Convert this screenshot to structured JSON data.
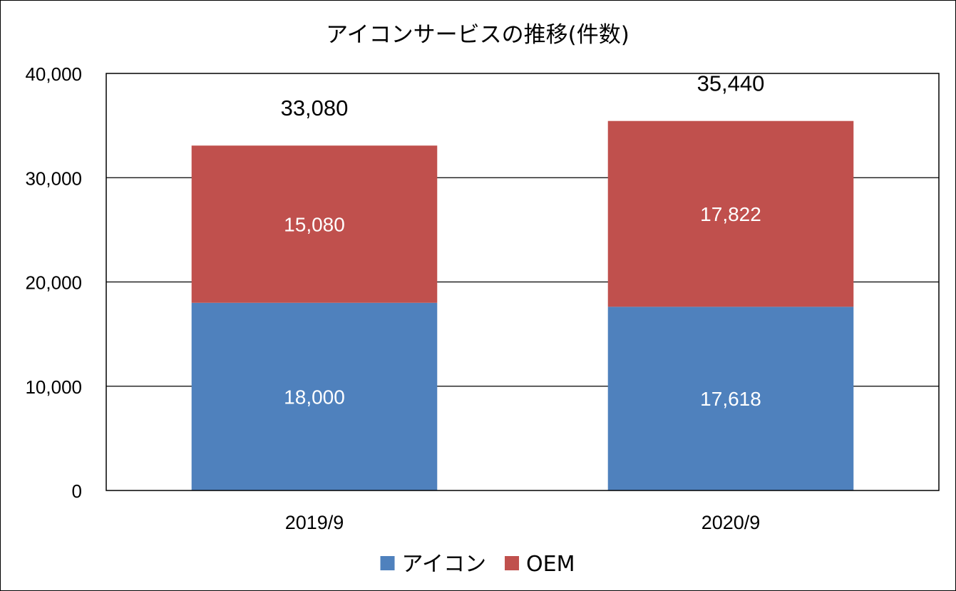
{
  "chart_data": {
    "type": "bar",
    "stacked": true,
    "title": "アイコンサービスの推移(件数)",
    "categories": [
      "2019/9",
      "2020/9"
    ],
    "series": [
      {
        "name": "アイコン",
        "values": [
          18000,
          17618
        ],
        "labels": [
          "18,000",
          "17,618"
        ],
        "color": "#4f81bd"
      },
      {
        "name": "OEM",
        "values": [
          15080,
          17822
        ],
        "labels": [
          "15,080",
          "17,822"
        ],
        "color": "#c0504d"
      }
    ],
    "totals": [
      33080,
      35440
    ],
    "total_labels": [
      "33,080",
      "35,440"
    ],
    "ylim": [
      0,
      40000
    ],
    "yticks": [
      0,
      10000,
      20000,
      30000,
      40000
    ],
    "ytick_labels": [
      "0",
      "10,000",
      "20,000",
      "30,000",
      "40,000"
    ],
    "grid": true,
    "legend_position": "bottom"
  }
}
